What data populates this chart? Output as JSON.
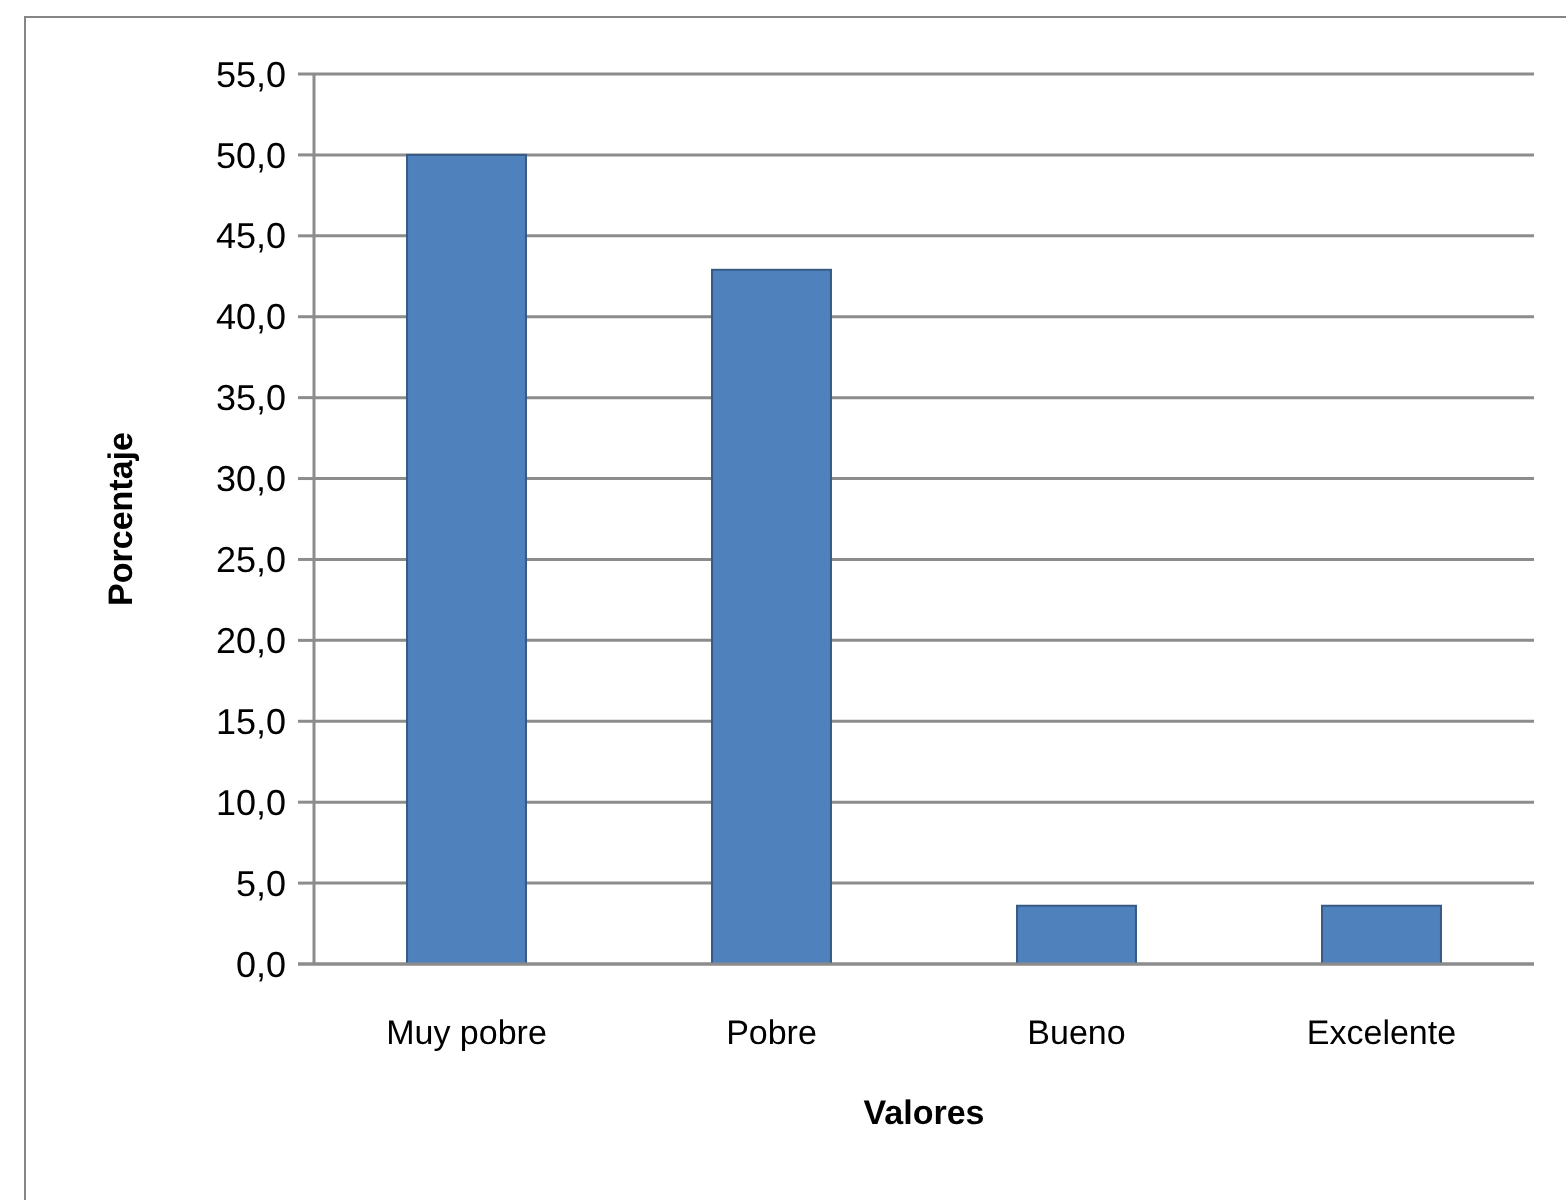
{
  "chart_data": {
    "type": "bar",
    "xlabel": "Valores",
    "ylabel": "Porcentaje",
    "categories": [
      "Muy pobre",
      "Pobre",
      "Bueno",
      "Excelente"
    ],
    "values": [
      50.0,
      42.9,
      3.6,
      3.6
    ],
    "color": "#4f81bd",
    "ylim": [
      0,
      55
    ],
    "yticks": [
      {
        "value": 0,
        "label": "0,0"
      },
      {
        "value": 5,
        "label": "5,0"
      },
      {
        "value": 10,
        "label": "10,0"
      },
      {
        "value": 15,
        "label": "15,0"
      },
      {
        "value": 20,
        "label": "20,0"
      },
      {
        "value": 25,
        "label": "25,0"
      },
      {
        "value": 30,
        "label": "30,0"
      },
      {
        "value": 35,
        "label": "35,0"
      },
      {
        "value": 40,
        "label": "40,0"
      },
      {
        "value": 45,
        "label": "45,0"
      },
      {
        "value": 50,
        "label": "50,0"
      },
      {
        "value": 55,
        "label": "55,0"
      }
    ],
    "grid": "y"
  }
}
